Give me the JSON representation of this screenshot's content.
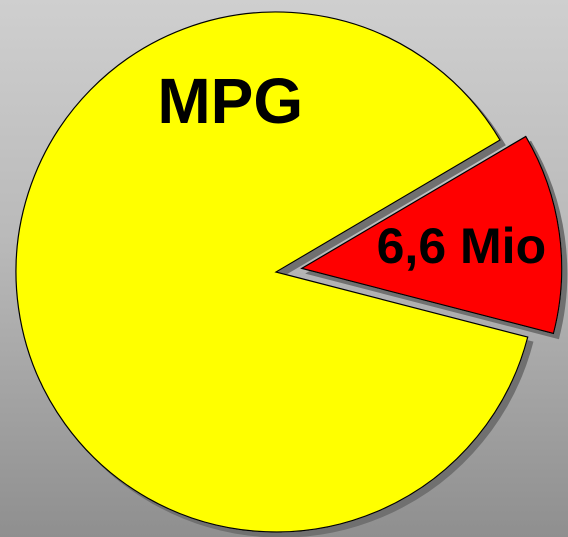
{
  "chart_data": {
    "type": "pie",
    "title": "",
    "slices": [
      {
        "label": "MPG",
        "value": 87.5,
        "color": "#ffff00",
        "exploded": false
      },
      {
        "label": "6,6 Mio",
        "value": 12.5,
        "color": "#ff0000",
        "exploded": true
      }
    ]
  }
}
